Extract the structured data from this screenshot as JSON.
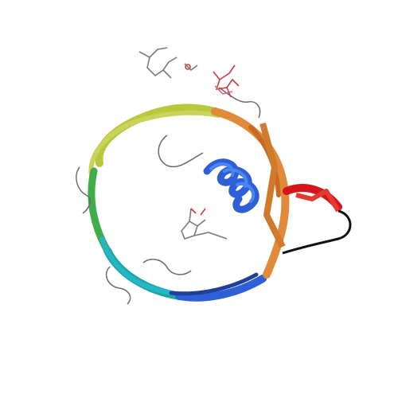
{
  "image": {
    "subject": "protein-structure-ribbon",
    "background_color": "#ffffff",
    "palette": {
      "blue": "#2f5fd6",
      "blue_light": "#4a86f0",
      "teal": "#1aa7a0",
      "cyan": "#23b7c8",
      "green": "#3fae4a",
      "yellow_green": "#b7c83a",
      "yellow": "#d6c14a",
      "orange": "#e08a3a",
      "orange_dark": "#c96a22",
      "red": "#d4161b",
      "gray": "#808080",
      "gray_dark": "#4a4a4a",
      "ligand_red": "#c83b3b",
      "ligand_pink": "#d06a8a"
    }
  }
}
